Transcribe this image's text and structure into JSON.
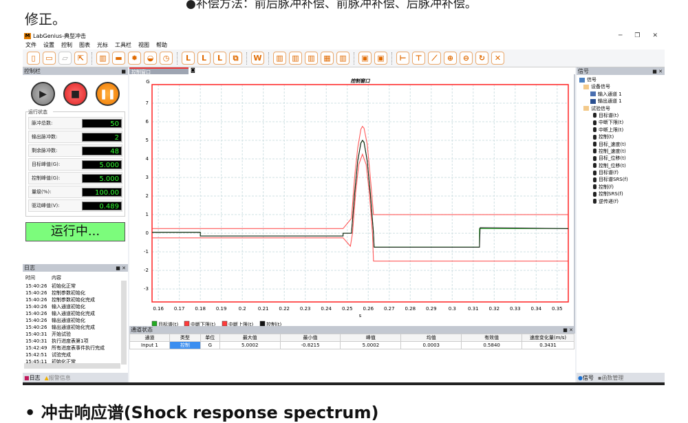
{
  "doc": {
    "top_line": "●补偿方法：前后脉冲补偿、前脉冲补偿、后脉冲补偿。",
    "fix_line": "修正。",
    "bottom_heading": "• 冲击响应谱(Shock response spectrum)"
  },
  "window": {
    "title": "LabGenius-典型冲击",
    "logo": "M",
    "buttons": [
      "─",
      "❐",
      "✕"
    ]
  },
  "menu": [
    "文件",
    "设置",
    "控制",
    "图表",
    "光标",
    "工具栏",
    "视图",
    "帮助"
  ],
  "toolbar": [
    {
      "icon": "new-file-icon",
      "g": "▯"
    },
    {
      "icon": "save-icon",
      "g": "▭"
    },
    {
      "icon": "open-folder-icon",
      "g": "▱",
      "disabled": true
    },
    {
      "icon": "export-icon",
      "g": "⇱"
    },
    "|",
    {
      "icon": "clipboard-icon",
      "g": "▥"
    },
    {
      "icon": "range-icon",
      "g": "▬"
    },
    {
      "icon": "settings-gear-icon",
      "g": "✹"
    },
    {
      "icon": "spectrum-icon",
      "g": "◒"
    },
    {
      "icon": "clock-icon",
      "g": "◷"
    },
    "|",
    {
      "icon": "limit-icon",
      "g": "L"
    },
    {
      "icon": "limit-add-icon",
      "g": "L"
    },
    {
      "icon": "limit-remove-icon",
      "g": "L"
    },
    {
      "icon": "copy-icon",
      "g": "⧉"
    },
    "|",
    {
      "icon": "word-report-icon",
      "g": "W"
    },
    "|",
    {
      "icon": "grid-icon",
      "g": "▥"
    },
    {
      "icon": "grid-icon",
      "g": "▥"
    },
    {
      "icon": "grid-icon",
      "g": "▥"
    },
    {
      "icon": "grid-icon",
      "g": "▦"
    },
    {
      "icon": "grid-icon",
      "g": "▥"
    },
    "|",
    {
      "icon": "layout-icon",
      "g": "▣"
    },
    {
      "icon": "layout-icon",
      "g": "▣"
    },
    "|",
    {
      "icon": "cursor-h-icon",
      "g": "⊢"
    },
    {
      "icon": "cursor-v-icon",
      "g": "⊤"
    },
    {
      "icon": "cursor-diag-icon",
      "g": "⟋"
    },
    {
      "icon": "zoom-in-icon",
      "g": "⊕"
    },
    {
      "icon": "zoom-out-icon",
      "g": "⊖"
    },
    {
      "icon": "refresh-icon",
      "g": "↻"
    },
    {
      "icon": "fit-icon",
      "g": "✕"
    }
  ],
  "control_panel": {
    "title": "控制栏",
    "status_title": "运行状态",
    "rows": [
      {
        "label": "脉冲总数:",
        "value": "50"
      },
      {
        "label": "输出脉冲数:",
        "value": "2"
      },
      {
        "label": "剩余脉冲数:",
        "value": "48"
      },
      {
        "label": "目标峰值(G):",
        "value": "5.000"
      },
      {
        "label": "控制峰值(G):",
        "value": "5.000"
      },
      {
        "label": "量级(%):",
        "value": "100.00"
      },
      {
        "label": "驱动峰值(V):",
        "value": "0.489"
      }
    ],
    "running": "运行中..."
  },
  "log": {
    "title": "日志",
    "headers": [
      "时间",
      "内容"
    ],
    "rows": [
      [
        "15:40:26",
        "初始化正常"
      ],
      [
        "15:40:26",
        "控制参数初始化"
      ],
      [
        "15:40:26",
        "控制参数初始化完成"
      ],
      [
        "15:40:26",
        "输入通道初始化"
      ],
      [
        "15:40:26",
        "输入通道初始化完成"
      ],
      [
        "15:40:26",
        "输出通道初始化"
      ],
      [
        "15:40:26",
        "输出通道初始化完成"
      ],
      [
        "15:40:31",
        "开始试验"
      ],
      [
        "15:40:31",
        "执行进度表第1项"
      ],
      [
        "15:42:49",
        "所有进度表事件执行完成"
      ],
      [
        "15:42:51",
        "试验完成"
      ],
      [
        "15:45:11",
        "初始化正常"
      ]
    ],
    "tabs": [
      "日志",
      "报警信息"
    ]
  },
  "doc_tab": "控制窗口",
  "chart_data": {
    "type": "line",
    "title": "控制窗口",
    "ylabel": "G",
    "xlabel": "s",
    "xlim": [
      0.157,
      0.3553
    ],
    "ylim": [
      -3.7,
      8
    ],
    "xticks": [
      0.16,
      0.17,
      0.18,
      0.19,
      0.2,
      0.21,
      0.22,
      0.23,
      0.24,
      0.25,
      0.26,
      0.27,
      0.28,
      0.29,
      0.3,
      0.31,
      0.32,
      0.33,
      0.34,
      0.35
    ],
    "yticks": [
      -3,
      -2,
      -1,
      0,
      1,
      2,
      3,
      4,
      5,
      6,
      7
    ],
    "grid": true,
    "legend": "bottom-left",
    "series": [
      {
        "name": "目标谱(t)",
        "color": "#22aa22",
        "points": [
          [
            0.157,
            0.05
          ],
          [
            0.18,
            0.05
          ],
          [
            0.18,
            -0.15
          ],
          [
            0.248,
            -0.15
          ],
          [
            0.248,
            0
          ],
          [
            0.252,
            0
          ],
          [
            0.2535,
            2.17
          ],
          [
            0.255,
            3.91
          ],
          [
            0.2565,
            4.87
          ],
          [
            0.25725,
            5
          ],
          [
            0.258,
            4.87
          ],
          [
            0.2595,
            3.91
          ],
          [
            0.261,
            2.17
          ],
          [
            0.2625,
            0
          ],
          [
            0.2628,
            -0.75
          ],
          [
            0.313,
            -0.75
          ],
          [
            0.313,
            0.25
          ],
          [
            0.3553,
            0.25
          ]
        ]
      },
      {
        "name": "中断下限(t)",
        "color": "#ff3b3b",
        "points": [
          [
            0.157,
            -0.25
          ],
          [
            0.248,
            -0.25
          ],
          [
            0.2515,
            -0.7
          ],
          [
            0.2525,
            0
          ],
          [
            0.254,
            2.2
          ],
          [
            0.2555,
            3.7
          ],
          [
            0.25725,
            4.25
          ],
          [
            0.259,
            3.7
          ],
          [
            0.2605,
            2.2
          ],
          [
            0.262,
            0
          ],
          [
            0.2625,
            -1.5
          ],
          [
            0.3553,
            -1.5
          ]
        ]
      },
      {
        "name": "中断上限(t)",
        "color": "#ff3b3b",
        "points": [
          [
            0.157,
            0.25
          ],
          [
            0.248,
            0.25
          ],
          [
            0.252,
            0.8
          ],
          [
            0.2535,
            3.0
          ],
          [
            0.255,
            4.6
          ],
          [
            0.2565,
            5.6
          ],
          [
            0.25725,
            5.75
          ],
          [
            0.258,
            5.65
          ],
          [
            0.2595,
            4.8
          ],
          [
            0.261,
            3.0
          ],
          [
            0.2625,
            1.0
          ],
          [
            0.3553,
            1.0
          ]
        ]
      },
      {
        "name": "控制(t)",
        "color": "#111111",
        "points": [
          [
            0.157,
            0.05
          ],
          [
            0.18,
            0.05
          ],
          [
            0.18,
            -0.15
          ],
          [
            0.248,
            -0.15
          ],
          [
            0.248,
            0
          ],
          [
            0.252,
            0
          ],
          [
            0.2535,
            2.1
          ],
          [
            0.255,
            3.9
          ],
          [
            0.2565,
            4.85
          ],
          [
            0.25725,
            5
          ],
          [
            0.258,
            4.9
          ],
          [
            0.2595,
            3.9
          ],
          [
            0.261,
            2.1
          ],
          [
            0.2625,
            0
          ],
          [
            0.2628,
            -0.75
          ],
          [
            0.313,
            -0.75
          ],
          [
            0.3133,
            0.3
          ],
          [
            0.3553,
            0.25
          ]
        ]
      }
    ]
  },
  "channel_status": {
    "title": "通道状态",
    "headers": [
      "通道",
      "类型",
      "单位",
      "最大值",
      "最小值",
      "峰值",
      "均值",
      "有效值",
      "速度变化量(m/s)"
    ],
    "rows": [
      [
        "Input 1",
        "控制",
        "G",
        "5.0002",
        "-0.8215",
        "5.0002",
        "0.0003",
        "0.5840",
        "0.3431"
      ]
    ]
  },
  "signal_panel": {
    "title": "信号",
    "tree": [
      {
        "label": "信号",
        "level": 0,
        "icon": "signal-root-icon"
      },
      {
        "label": "设备信号",
        "level": 1,
        "icon": "folder-icon"
      },
      {
        "label": "输入通道 1",
        "level": 2,
        "icon": "input-channel-icon"
      },
      {
        "label": "输出通道 1",
        "level": 2,
        "icon": "output-channel-icon"
      },
      {
        "label": "试验信号",
        "level": 1,
        "icon": "folder-icon"
      },
      {
        "label": "目标谱(t)",
        "level": 3
      },
      {
        "label": "中断下限(t)",
        "level": 3
      },
      {
        "label": "中断上限(t)",
        "level": 3
      },
      {
        "label": "控制(t)",
        "level": 3
      },
      {
        "label": "目标_速度(t)",
        "level": 3
      },
      {
        "label": "控制_速度(t)",
        "level": 3
      },
      {
        "label": "目标_位移(t)",
        "level": 3
      },
      {
        "label": "控制_位移(t)",
        "level": 3
      },
      {
        "label": "目标谱(f)",
        "level": 3
      },
      {
        "label": "目标谱SRS(f)",
        "level": 3
      },
      {
        "label": "控制(f)",
        "level": 3
      },
      {
        "label": "控制SRS(f)",
        "level": 3
      },
      {
        "label": "逆传递(f)",
        "level": 3
      }
    ],
    "tabs": [
      "信号",
      "函数管理"
    ]
  }
}
